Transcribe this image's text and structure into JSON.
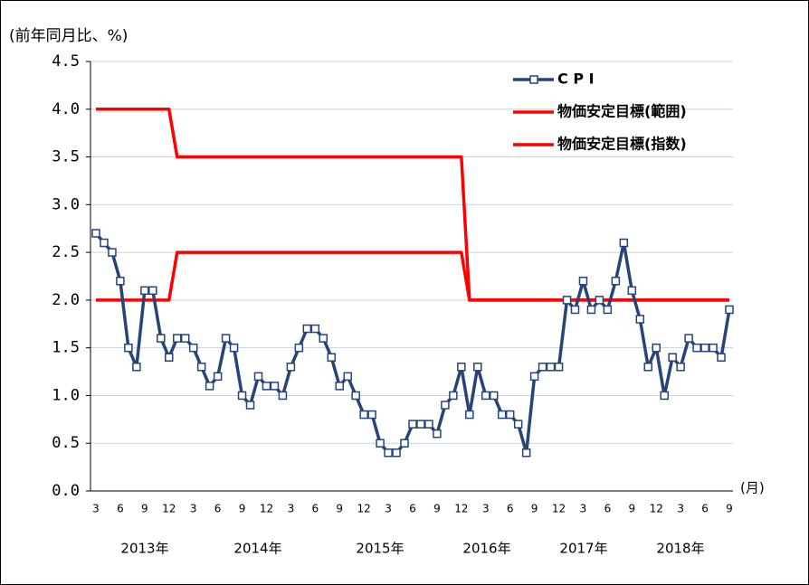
{
  "chart_data": {
    "type": "line",
    "y_label": "(前年同月比、%)",
    "x_unit": "(月)",
    "categories": [
      "3",
      null,
      null,
      "6",
      null,
      null,
      "9",
      null,
      null,
      "12",
      null,
      null,
      "3",
      null,
      null,
      "6",
      null,
      null,
      "9",
      null,
      null,
      "12",
      null,
      null,
      "3",
      null,
      null,
      "6",
      null,
      null,
      "9",
      null,
      null,
      "12",
      null,
      null,
      "3",
      null,
      null,
      "6",
      null,
      null,
      "9",
      null,
      null,
      "12",
      null,
      null,
      "3",
      null,
      null,
      "6",
      null,
      null,
      "9",
      null,
      null,
      "12",
      null,
      null,
      "3",
      null,
      null,
      "6",
      null,
      null,
      "9",
      null,
      null,
      "12",
      null,
      null,
      "3",
      null,
      null,
      "6",
      null,
      null,
      "9"
    ],
    "year_labels": [
      "2013年",
      "2014年",
      "2015年",
      "2016年",
      "2017年",
      "2018年"
    ],
    "series": [
      {
        "name": "C P I",
        "color": "#264478",
        "marker": "square",
        "values": [
          2.7,
          2.6,
          2.5,
          2.2,
          1.5,
          1.3,
          2.1,
          2.1,
          1.6,
          1.4,
          1.6,
          1.6,
          1.5,
          1.3,
          1.1,
          1.2,
          1.6,
          1.5,
          1.0,
          0.9,
          1.2,
          1.1,
          1.1,
          1.0,
          1.3,
          1.5,
          1.7,
          1.7,
          1.6,
          1.4,
          1.1,
          1.2,
          1.0,
          0.8,
          0.8,
          0.5,
          0.4,
          0.4,
          0.5,
          0.7,
          0.7,
          0.7,
          0.6,
          0.9,
          1.0,
          1.3,
          0.8,
          1.3,
          1.0,
          1.0,
          0.8,
          0.8,
          0.7,
          0.4,
          1.2,
          1.3,
          1.3,
          1.3,
          2.0,
          1.9,
          2.2,
          1.9,
          2.0,
          1.9,
          2.2,
          2.6,
          2.1,
          1.8,
          1.3,
          1.5,
          1.0,
          1.4,
          1.3,
          1.6,
          1.5,
          1.5,
          1.5,
          1.4,
          1.9
        ]
      },
      {
        "name": "物価安定目標(範囲)",
        "color": "#ff0000",
        "values": [
          4.0,
          4.0,
          4.0,
          4.0,
          4.0,
          4.0,
          4.0,
          4.0,
          4.0,
          4.0,
          3.5,
          3.5,
          3.5,
          3.5,
          3.5,
          3.5,
          3.5,
          3.5,
          3.5,
          3.5,
          3.5,
          3.5,
          3.5,
          3.5,
          3.5,
          3.5,
          3.5,
          3.5,
          3.5,
          3.5,
          3.5,
          3.5,
          3.5,
          3.5,
          3.5,
          3.5,
          3.5,
          3.5,
          3.5,
          3.5,
          3.5,
          3.5,
          3.5,
          3.5,
          3.5,
          3.5,
          2.0,
          2.0,
          2.0,
          2.0,
          2.0,
          2.0,
          2.0,
          2.0,
          2.0,
          2.0,
          2.0,
          2.0,
          2.0,
          2.0,
          2.0,
          2.0,
          2.0,
          2.0,
          2.0,
          2.0,
          2.0,
          2.0,
          2.0,
          2.0,
          2.0,
          2.0,
          2.0,
          2.0,
          2.0,
          2.0,
          2.0,
          2.0,
          2.0
        ]
      },
      {
        "name": "物価安定目標(指数)",
        "color": "#ff0000",
        "values": [
          2.0,
          2.0,
          2.0,
          2.0,
          2.0,
          2.0,
          2.0,
          2.0,
          2.0,
          2.0,
          2.5,
          2.5,
          2.5,
          2.5,
          2.5,
          2.5,
          2.5,
          2.5,
          2.5,
          2.5,
          2.5,
          2.5,
          2.5,
          2.5,
          2.5,
          2.5,
          2.5,
          2.5,
          2.5,
          2.5,
          2.5,
          2.5,
          2.5,
          2.5,
          2.5,
          2.5,
          2.5,
          2.5,
          2.5,
          2.5,
          2.5,
          2.5,
          2.5,
          2.5,
          2.5,
          2.5,
          2.0,
          2.0,
          2.0,
          2.0,
          2.0,
          2.0,
          2.0,
          2.0,
          2.0,
          2.0,
          2.0,
          2.0,
          2.0,
          2.0,
          2.0,
          2.0,
          2.0,
          2.0,
          2.0,
          2.0,
          2.0,
          2.0,
          2.0,
          2.0,
          2.0,
          2.0,
          2.0,
          2.0,
          2.0,
          2.0,
          2.0,
          2.0,
          2.0
        ]
      }
    ],
    "ylim": [
      0,
      4.5
    ],
    "yticks": [
      {
        "value": 0,
        "label": "0.0"
      },
      {
        "value": 0.5,
        "label": "0.5"
      },
      {
        "value": 1,
        "label": "1.0"
      },
      {
        "value": 1.5,
        "label": "1.5"
      },
      {
        "value": 2,
        "label": "2.0"
      },
      {
        "value": 2.5,
        "label": "2.5"
      },
      {
        "value": 3,
        "label": "3.0"
      },
      {
        "value": 3.5,
        "label": "3.5"
      },
      {
        "value": 4,
        "label": "4.0"
      },
      {
        "value": 4.5,
        "label": "4.5"
      }
    ],
    "grid": true
  }
}
